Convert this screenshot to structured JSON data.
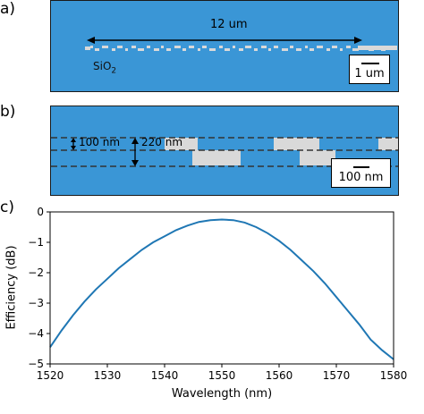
{
  "panel_a": {
    "label": "a)",
    "length_annotation": "12 um",
    "material_base": "SiO",
    "material_sub": "2",
    "scale_label": "1 um"
  },
  "panel_b": {
    "label": "b)",
    "etch_depth_label": "100 nm",
    "thickness_label": "220 nm",
    "scale_label": "100 nm"
  },
  "panel_c": {
    "label": "c)",
    "xlabel": "Wavelength (nm)",
    "ylabel": "Efficiency (dB)",
    "xticks": [
      "1520",
      "1530",
      "1540",
      "1550",
      "1560",
      "1570",
      "1580"
    ],
    "yticks": [
      "0",
      "−1",
      "−2",
      "−3",
      "−4",
      "−5"
    ]
  },
  "colors": {
    "oxide": "#3a96d6",
    "silicon": "#d9d9d9",
    "curve": "#1f77b4"
  },
  "chart_data": {
    "type": "line",
    "xlabel": "Wavelength (nm)",
    "ylabel": "Efficiency (dB)",
    "xlim": [
      1520,
      1580
    ],
    "ylim": [
      -5,
      0
    ],
    "series": [
      {
        "x": [
          1520,
          1522,
          1524,
          1526,
          1528,
          1530,
          1532,
          1534,
          1536,
          1538,
          1540,
          1542,
          1544,
          1546,
          1548,
          1550,
          1552,
          1554,
          1556,
          1558,
          1560,
          1562,
          1564,
          1566,
          1568,
          1570,
          1572,
          1574,
          1576,
          1578,
          1580
        ],
        "y": [
          -4.45,
          -3.9,
          -3.4,
          -2.95,
          -2.55,
          -2.2,
          -1.85,
          -1.55,
          -1.25,
          -1.0,
          -0.8,
          -0.6,
          -0.45,
          -0.33,
          -0.27,
          -0.25,
          -0.27,
          -0.35,
          -0.5,
          -0.7,
          -0.95,
          -1.25,
          -1.6,
          -1.95,
          -2.35,
          -2.8,
          -3.25,
          -3.7,
          -4.2,
          -4.55,
          -4.85
        ]
      }
    ]
  }
}
